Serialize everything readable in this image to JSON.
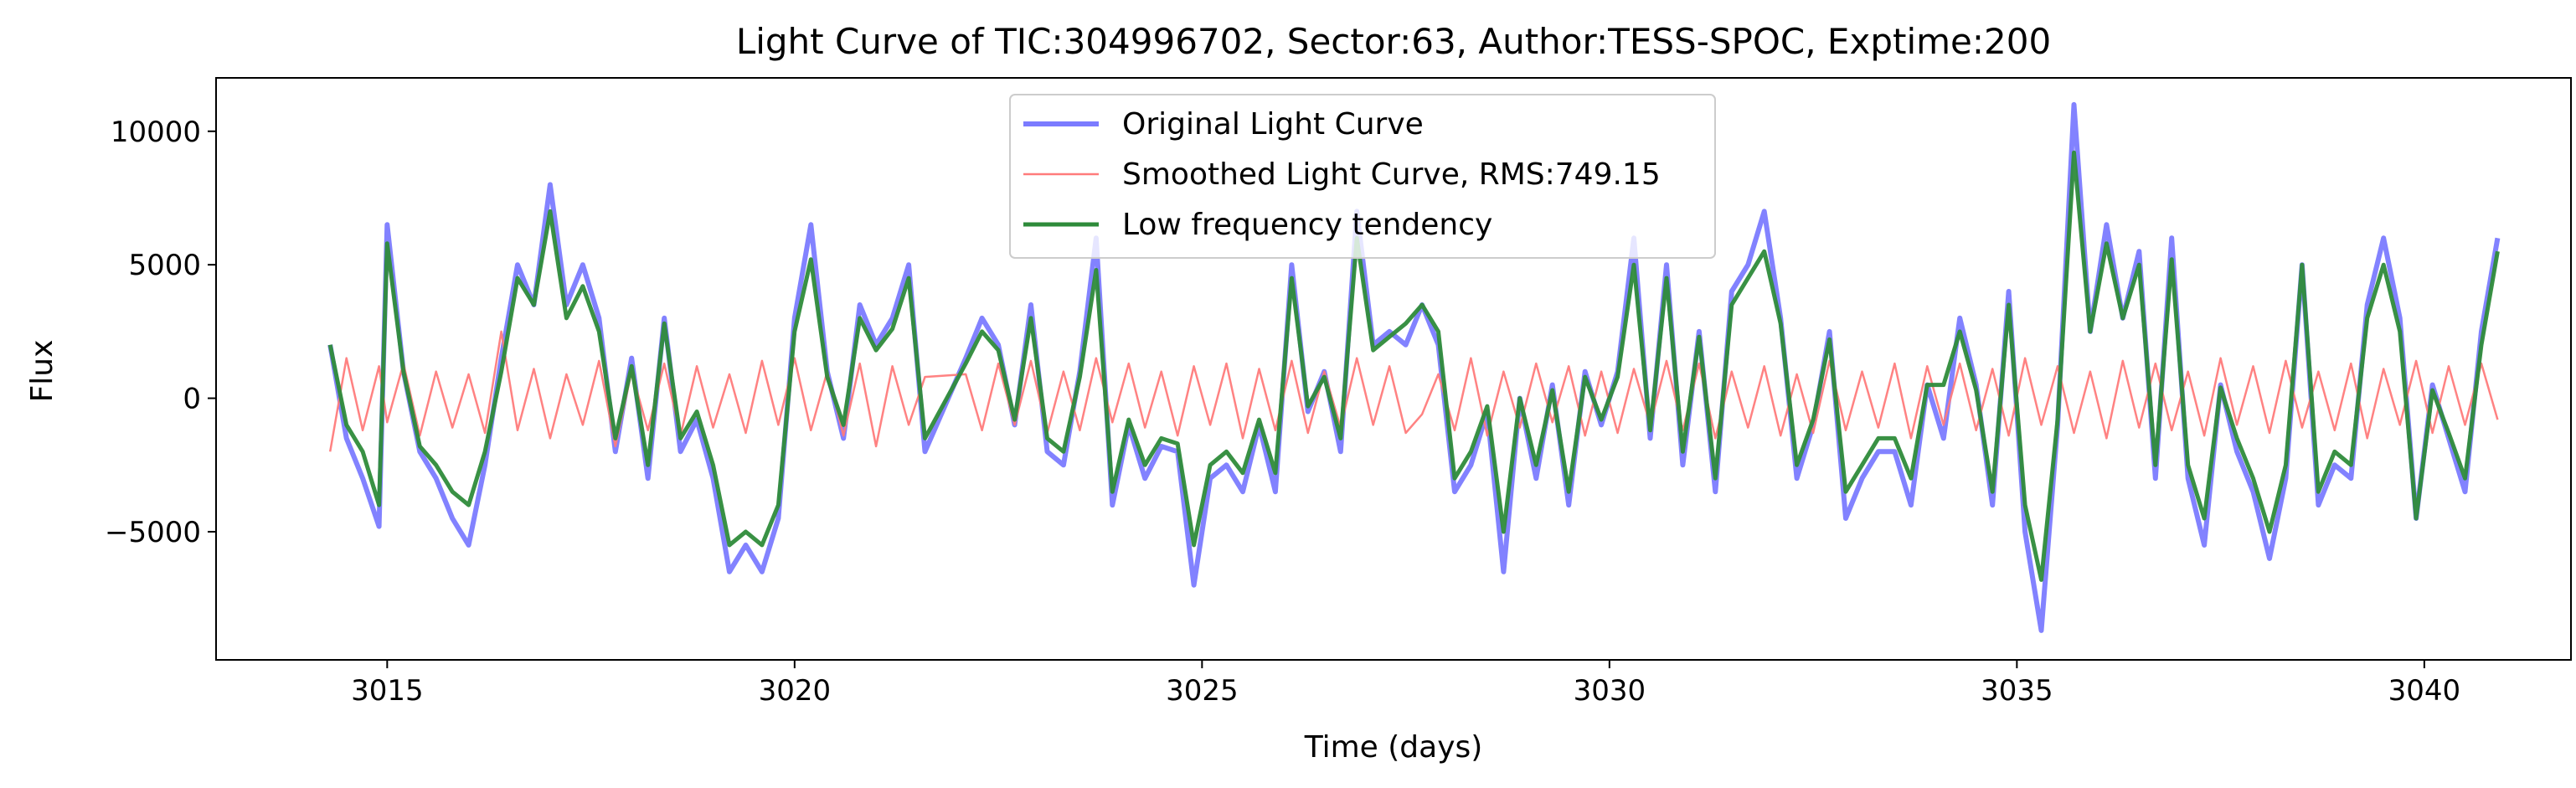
{
  "chart_data": {
    "type": "line",
    "title": "Light Curve of TIC:304996702, Sector:63, Author:TESS-SPOC, Exptime:200",
    "xlabel": "Time (days)",
    "ylabel": "Flux",
    "xlim": [
      3012.9,
      3041.8
    ],
    "ylim": [
      -9800,
      12000
    ],
    "xticks": [
      3015,
      3020,
      3025,
      3030,
      3035,
      3040
    ],
    "xtick_labels": [
      "3015",
      "3020",
      "3025",
      "3030",
      "3035",
      "3040"
    ],
    "yticks": [
      -5000,
      0,
      5000,
      10000
    ],
    "ytick_labels": [
      "−5000",
      "0",
      "5000",
      "10000"
    ],
    "grid": false,
    "legend_location": "upper center",
    "gap": [
      3021.6,
      3022.1
    ],
    "series": [
      {
        "name": "Original Light Curve",
        "color": "#7b7bff",
        "x": [
          3014.3,
          3014.5,
          3014.7,
          3014.9,
          3015.0,
          3015.2,
          3015.4,
          3015.6,
          3015.8,
          3016.0,
          3016.2,
          3016.4,
          3016.6,
          3016.8,
          3017.0,
          3017.2,
          3017.4,
          3017.6,
          3017.8,
          3018.0,
          3018.2,
          3018.4,
          3018.6,
          3018.8,
          3019.0,
          3019.2,
          3019.4,
          3019.6,
          3019.8,
          3020.0,
          3020.2,
          3020.4,
          3020.6,
          3020.8,
          3021.0,
          3021.2,
          3021.4,
          3021.6,
          3022.1,
          3022.3,
          3022.5,
          3022.7,
          3022.9,
          3023.1,
          3023.3,
          3023.5,
          3023.7,
          3023.9,
          3024.1,
          3024.3,
          3024.5,
          3024.7,
          3024.9,
          3025.1,
          3025.3,
          3025.5,
          3025.7,
          3025.9,
          3026.1,
          3026.3,
          3026.5,
          3026.7,
          3026.9,
          3027.1,
          3027.3,
          3027.5,
          3027.7,
          3027.9,
          3028.1,
          3028.3,
          3028.5,
          3028.7,
          3028.9,
          3029.1,
          3029.3,
          3029.5,
          3029.7,
          3029.9,
          3030.1,
          3030.3,
          3030.5,
          3030.7,
          3030.9,
          3031.1,
          3031.3,
          3031.5,
          3031.7,
          3031.9,
          3032.1,
          3032.3,
          3032.5,
          3032.7,
          3032.9,
          3033.1,
          3033.3,
          3033.5,
          3033.7,
          3033.9,
          3034.1,
          3034.3,
          3034.5,
          3034.7,
          3034.9,
          3035.1,
          3035.3,
          3035.5,
          3035.7,
          3035.9,
          3036.1,
          3036.3,
          3036.5,
          3036.7,
          3036.9,
          3037.1,
          3037.3,
          3037.5,
          3037.7,
          3037.9,
          3038.1,
          3038.3,
          3038.5,
          3038.7,
          3038.9,
          3039.1,
          3039.3,
          3039.5,
          3039.7,
          3039.9,
          3040.1,
          3040.3,
          3040.5,
          3040.7,
          3040.9
        ],
        "y": [
          2000,
          -1500,
          -3000,
          -4800,
          6500,
          1000,
          -2000,
          -3000,
          -4500,
          -5500,
          -2500,
          1500,
          5000,
          3500,
          8000,
          3500,
          5000,
          3000,
          -2000,
          1500,
          -3000,
          3000,
          -2000,
          -800,
          -3000,
          -6500,
          -5500,
          -6500,
          -4500,
          3000,
          6500,
          1000,
          -1500,
          3500,
          2000,
          3000,
          5000,
          -2000,
          1500,
          3000,
          2000,
          -1000,
          3500,
          -2000,
          -2500,
          1000,
          6000,
          -4000,
          -1000,
          -3000,
          -1800,
          -2000,
          -7000,
          -3000,
          -2500,
          -3500,
          -1000,
          -3500,
          5000,
          -500,
          1000,
          -2000,
          7000,
          2000,
          2500,
          2000,
          3500,
          2000,
          -3500,
          -2500,
          -500,
          -6500,
          0,
          -3000,
          500,
          -4000,
          1000,
          -1000,
          1000,
          6000,
          -1500,
          5000,
          -2500,
          2500,
          -3500,
          4000,
          5000,
          7000,
          3000,
          -3000,
          -1000,
          2500,
          -4500,
          -3000,
          -2000,
          -2000,
          -4000,
          500,
          -1500,
          3000,
          500,
          -4000,
          4000,
          -5000,
          -8700,
          -1000,
          11000,
          2500,
          6500,
          3000,
          5500,
          -3000,
          6000,
          -3000,
          -5500,
          500,
          -2000,
          -3500,
          -6000,
          -3000,
          5000,
          -4000,
          -2500,
          -3000,
          3500,
          6000,
          3000,
          -4500,
          500,
          -1500,
          -3500,
          2500,
          6000
        ]
      },
      {
        "name": "Smoothed Light Curve, RMS:749.15",
        "color": "#ff7b7b",
        "x": [
          3014.3,
          3014.5,
          3014.7,
          3014.9,
          3015.0,
          3015.2,
          3015.4,
          3015.6,
          3015.8,
          3016.0,
          3016.2,
          3016.4,
          3016.6,
          3016.8,
          3017.0,
          3017.2,
          3017.4,
          3017.6,
          3017.8,
          3018.0,
          3018.2,
          3018.4,
          3018.6,
          3018.8,
          3019.0,
          3019.2,
          3019.4,
          3019.6,
          3019.8,
          3020.0,
          3020.2,
          3020.4,
          3020.6,
          3020.8,
          3021.0,
          3021.2,
          3021.4,
          3021.6,
          3022.1,
          3022.3,
          3022.5,
          3022.7,
          3022.9,
          3023.1,
          3023.3,
          3023.5,
          3023.7,
          3023.9,
          3024.1,
          3024.3,
          3024.5,
          3024.7,
          3024.9,
          3025.1,
          3025.3,
          3025.5,
          3025.7,
          3025.9,
          3026.1,
          3026.3,
          3026.5,
          3026.7,
          3026.9,
          3027.1,
          3027.3,
          3027.5,
          3027.7,
          3027.9,
          3028.1,
          3028.3,
          3028.5,
          3028.7,
          3028.9,
          3029.1,
          3029.3,
          3029.5,
          3029.7,
          3029.9,
          3030.1,
          3030.3,
          3030.5,
          3030.7,
          3030.9,
          3031.1,
          3031.3,
          3031.5,
          3031.7,
          3031.9,
          3032.1,
          3032.3,
          3032.5,
          3032.7,
          3032.9,
          3033.1,
          3033.3,
          3033.5,
          3033.7,
          3033.9,
          3034.1,
          3034.3,
          3034.5,
          3034.7,
          3034.9,
          3035.1,
          3035.3,
          3035.5,
          3035.7,
          3035.9,
          3036.1,
          3036.3,
          3036.5,
          3036.7,
          3036.9,
          3037.1,
          3037.3,
          3037.5,
          3037.7,
          3037.9,
          3038.1,
          3038.3,
          3038.5,
          3038.7,
          3038.9,
          3039.1,
          3039.3,
          3039.5,
          3039.7,
          3039.9,
          3040.1,
          3040.3,
          3040.5,
          3040.7,
          3040.9
        ],
        "y": [
          -2000,
          1500,
          -1200,
          1200,
          -900,
          1300,
          -1400,
          1000,
          -1100,
          900,
          -1300,
          2500,
          -1200,
          1100,
          -1500,
          900,
          -1000,
          1400,
          -1800,
          1000,
          -1200,
          1300,
          -1400,
          1200,
          -1100,
          900,
          -1300,
          1400,
          -1000,
          1500,
          -1200,
          1000,
          -1400,
          1300,
          -1800,
          1200,
          -1000,
          800,
          900,
          -1200,
          1300,
          -1000,
          1400,
          -1300,
          1000,
          -1200,
          1500,
          -900,
          1300,
          -1100,
          1000,
          -1400,
          1200,
          -1000,
          1300,
          -1500,
          1100,
          -1200,
          1400,
          -1300,
          1000,
          -1100,
          1500,
          -1000,
          1200,
          -1300,
          -600,
          900,
          -1200,
          1500,
          -1400,
          1000,
          -1100,
          1300,
          -900,
          1200,
          -1400,
          1000,
          -1300,
          1100,
          -1000,
          1400,
          -1200,
          1300,
          -1500,
          1000,
          -1100,
          1200,
          -1400,
          900,
          -1300,
          1400,
          -1200,
          1000,
          -1100,
          1300,
          -1500,
          1200,
          -1000,
          1300,
          -1200,
          1100,
          -1400,
          1500,
          -1000,
          1200,
          -1300,
          1000,
          -1500,
          1400,
          -1100,
          1300,
          -1200,
          1000,
          -1400,
          1500,
          -1000,
          1200,
          -1300,
          1400,
          -1100,
          1000,
          -1200,
          1300,
          -1500,
          1100,
          -1000,
          1400,
          -1300,
          1200,
          -1000,
          1300,
          -800
        ]
      },
      {
        "name": "Low frequency tendency",
        "color": "#2e8b3a",
        "x": [
          3014.3,
          3014.5,
          3014.7,
          3014.9,
          3015.0,
          3015.2,
          3015.4,
          3015.6,
          3015.8,
          3016.0,
          3016.2,
          3016.4,
          3016.6,
          3016.8,
          3017.0,
          3017.2,
          3017.4,
          3017.6,
          3017.8,
          3018.0,
          3018.2,
          3018.4,
          3018.6,
          3018.8,
          3019.0,
          3019.2,
          3019.4,
          3019.6,
          3019.8,
          3020.0,
          3020.2,
          3020.4,
          3020.6,
          3020.8,
          3021.0,
          3021.2,
          3021.4,
          3021.6,
          3022.1,
          3022.3,
          3022.5,
          3022.7,
          3022.9,
          3023.1,
          3023.3,
          3023.5,
          3023.7,
          3023.9,
          3024.1,
          3024.3,
          3024.5,
          3024.7,
          3024.9,
          3025.1,
          3025.3,
          3025.5,
          3025.7,
          3025.9,
          3026.1,
          3026.3,
          3026.5,
          3026.7,
          3026.9,
          3027.1,
          3027.3,
          3027.5,
          3027.7,
          3027.9,
          3028.1,
          3028.3,
          3028.5,
          3028.7,
          3028.9,
          3029.1,
          3029.3,
          3029.5,
          3029.7,
          3029.9,
          3030.1,
          3030.3,
          3030.5,
          3030.7,
          3030.9,
          3031.1,
          3031.3,
          3031.5,
          3031.7,
          3031.9,
          3032.1,
          3032.3,
          3032.5,
          3032.7,
          3032.9,
          3033.1,
          3033.3,
          3033.5,
          3033.7,
          3033.9,
          3034.1,
          3034.3,
          3034.5,
          3034.7,
          3034.9,
          3035.1,
          3035.3,
          3035.5,
          3035.7,
          3035.9,
          3036.1,
          3036.3,
          3036.5,
          3036.7,
          3036.9,
          3037.1,
          3037.3,
          3037.5,
          3037.7,
          3037.9,
          3038.1,
          3038.3,
          3038.5,
          3038.7,
          3038.9,
          3039.1,
          3039.3,
          3039.5,
          3039.7,
          3039.9,
          3040.1,
          3040.3,
          3040.5,
          3040.7,
          3040.9
        ],
        "y": [
          2000,
          -1000,
          -2000,
          -4000,
          5800,
          1000,
          -1800,
          -2500,
          -3500,
          -4000,
          -2000,
          1000,
          4500,
          3500,
          7000,
          3000,
          4200,
          2500,
          -1500,
          1200,
          -2500,
          2800,
          -1500,
          -500,
          -2500,
          -5500,
          -5000,
          -5500,
          -4000,
          2500,
          5200,
          800,
          -1000,
          3000,
          1800,
          2600,
          4500,
          -1500,
          1300,
          2500,
          1800,
          -800,
          3000,
          -1500,
          -2000,
          800,
          4800,
          -3500,
          -800,
          -2500,
          -1500,
          -1700,
          -5500,
          -2500,
          -2000,
          -2800,
          -800,
          -2800,
          4500,
          -300,
          800,
          -1500,
          6000,
          1800,
          2300,
          2800,
          3500,
          2500,
          -3000,
          -2000,
          -300,
          -5000,
          0,
          -2500,
          300,
          -3500,
          800,
          -800,
          800,
          5000,
          -1200,
          4500,
          -2000,
          2300,
          -3000,
          3500,
          4500,
          5500,
          2800,
          -2500,
          -800,
          2200,
          -3500,
          -2500,
          -1500,
          -1500,
          -3000,
          500,
          500,
          2500,
          300,
          -3500,
          3500,
          -4000,
          -6800,
          -800,
          9200,
          2500,
          5800,
          3000,
          5000,
          -2500,
          5200,
          -2500,
          -4500,
          400,
          -1500,
          -3000,
          -5000,
          -2500,
          5000,
          -3500,
          -2000,
          -2500,
          3000,
          5000,
          2500,
          -4500,
          300,
          -1300,
          -3000,
          2000,
          5500
        ]
      }
    ]
  }
}
